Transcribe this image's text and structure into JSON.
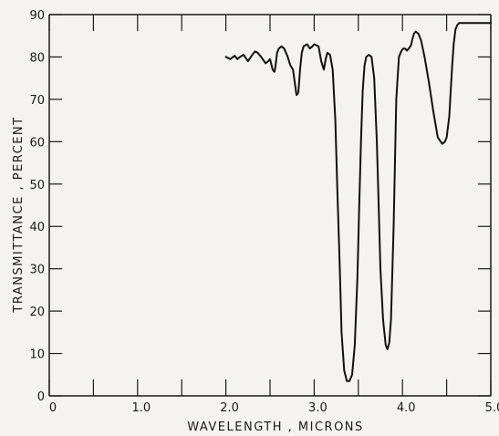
{
  "chart_data": {
    "type": "line",
    "xlabel": "WAVELENGTH , MICRONS",
    "ylabel": "TRANSMITTANCE , PERCENT",
    "xlim": [
      0,
      5.0
    ],
    "ylim": [
      0,
      90
    ],
    "x_ticks": [
      0,
      0.5,
      1.0,
      1.5,
      2.0,
      2.5,
      3.0,
      3.5,
      4.0,
      4.5,
      5.0
    ],
    "x_tick_labels": [
      {
        "value": 0,
        "label": "0"
      },
      {
        "value": 1.0,
        "label": "1.0"
      },
      {
        "value": 2.0,
        "label": "2.0"
      },
      {
        "value": 3.0,
        "label": "3.0"
      },
      {
        "value": 4.0,
        "label": "4.0"
      },
      {
        "value": 5.0,
        "label": "5.0"
      }
    ],
    "y_ticks": [
      0,
      10,
      20,
      30,
      40,
      50,
      60,
      70,
      80,
      90
    ],
    "y_tick_labels": [
      "0",
      "10",
      "20",
      "30",
      "40",
      "50",
      "60",
      "70",
      "80",
      "90"
    ],
    "grid": false,
    "series": [
      {
        "x": [
          2.0,
          2.05,
          2.1,
          2.13,
          2.16,
          2.2,
          2.25,
          2.3,
          2.33,
          2.36,
          2.4,
          2.45,
          2.48,
          2.5,
          2.53,
          2.55,
          2.56,
          2.58,
          2.6,
          2.63,
          2.66,
          2.7,
          2.73,
          2.76,
          2.78,
          2.8,
          2.82,
          2.84,
          2.86,
          2.88,
          2.92,
          2.95,
          2.98,
          3.0,
          3.05,
          3.08,
          3.11,
          3.13,
          3.15,
          3.18,
          3.21,
          3.24,
          3.26,
          3.29,
          3.31,
          3.34,
          3.37,
          3.4,
          3.43,
          3.46,
          3.49,
          3.51,
          3.53,
          3.55,
          3.57,
          3.59,
          3.62,
          3.65,
          3.68,
          3.71,
          3.73,
          3.75,
          3.78,
          3.81,
          3.83,
          3.85,
          3.87,
          3.9,
          3.93,
          3.96,
          3.99,
          4.01,
          4.03,
          4.05,
          4.07,
          4.09,
          4.1,
          4.11,
          4.13,
          4.15,
          4.18,
          4.21,
          4.25,
          4.3,
          4.35,
          4.4,
          4.45,
          4.48,
          4.5,
          4.53,
          4.56,
          4.58,
          4.6,
          4.62,
          4.64,
          4.66,
          4.68,
          4.7,
          4.72,
          4.74,
          4.76,
          4.78,
          4.8,
          4.82,
          4.85,
          4.88,
          4.9,
          4.93,
          4.96,
          5.0
        ],
        "y": [
          80.0,
          79.5,
          80.3,
          79.5,
          80.0,
          80.5,
          79.0,
          80.5,
          81.3,
          81.0,
          80.0,
          78.5,
          79.0,
          79.5,
          77.0,
          76.5,
          77.5,
          81.0,
          82.0,
          82.5,
          82.0,
          80.0,
          78.0,
          77.0,
          74.0,
          71.0,
          71.5,
          77.0,
          81.0,
          82.5,
          83.0,
          82.0,
          82.5,
          83.0,
          82.5,
          79.0,
          77.0,
          79.5,
          81.0,
          80.5,
          77.0,
          65.0,
          50.0,
          30.0,
          15.0,
          6.0,
          3.5,
          3.5,
          5.0,
          12.0,
          28.0,
          45.0,
          60.0,
          72.0,
          78.0,
          80.0,
          80.5,
          80.0,
          75.0,
          60.0,
          45.0,
          30.0,
          18.0,
          12.0,
          11.0,
          12.5,
          18.0,
          40.0,
          70.0,
          80.0,
          81.5,
          82.0,
          82.0,
          81.5,
          82.0,
          82.5,
          83.0,
          84.0,
          85.5,
          86.0,
          85.5,
          84.0,
          80.0,
          74.0,
          67.0,
          61.0,
          59.5,
          60.0,
          61.0,
          66.0,
          77.0,
          83.0,
          86.5,
          87.5,
          88.0,
          88.0,
          88.0,
          88.0,
          88.0,
          88.0,
          88.0,
          88.0,
          88.0,
          88.0,
          88.0,
          88.0,
          88.0,
          88.0,
          88.0,
          88.0
        ]
      }
    ]
  }
}
